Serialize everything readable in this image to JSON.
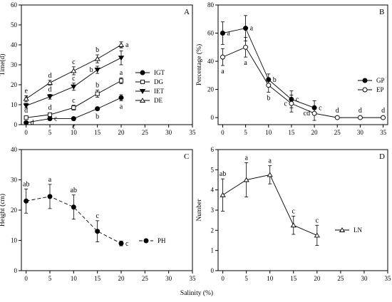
{
  "figure": {
    "shared_xlabel": "Salinity (%)"
  },
  "chart_data": [
    {
      "panel": "A",
      "type": "line",
      "ylabel": "Time(d)",
      "xlim": [
        -1,
        35
      ],
      "ylim": [
        0,
        60
      ],
      "xticks": [
        0,
        5,
        10,
        15,
        20,
        25,
        30,
        35
      ],
      "yticks": [
        0,
        10,
        20,
        30,
        40,
        50,
        60
      ],
      "legend_position": "bottom-right",
      "series": [
        {
          "name": "IGT",
          "marker": "filled-circle",
          "line": "solid",
          "x": [
            0,
            5,
            10,
            15,
            20
          ],
          "y": [
            1,
            3,
            3,
            8,
            13.5
          ],
          "err": [
            0.5,
            0.5,
            0.8,
            0.8,
            1.5
          ],
          "sig": [
            "d",
            "c",
            "c",
            "b",
            "a"
          ],
          "sig_side": [
            "right",
            "right",
            "below",
            "below",
            "below"
          ]
        },
        {
          "name": "DG",
          "marker": "open-square",
          "line": "solid",
          "x": [
            0,
            5,
            10,
            15,
            20
          ],
          "y": [
            3.5,
            5,
            8.5,
            15.5,
            22
          ],
          "err": [
            0.8,
            0.8,
            1.2,
            1.8,
            1.5
          ],
          "sig": [
            "d",
            "d",
            "c",
            "b",
            "a"
          ],
          "sig_side": [
            "above",
            "above",
            "above",
            "above",
            "above"
          ]
        },
        {
          "name": "IET",
          "marker": "filled-triangle-down",
          "line": "solid",
          "x": [
            0,
            5,
            10,
            15,
            20
          ],
          "y": [
            9.5,
            14,
            19,
            27.5,
            33.5
          ],
          "err": [
            1.2,
            1.2,
            1.8,
            1.8,
            3.5
          ],
          "sig": [
            "d",
            "d",
            "c",
            "b",
            "a"
          ],
          "sig_side": [
            "above",
            "above",
            "above",
            "left",
            "above"
          ]
        },
        {
          "name": "DE",
          "marker": "open-triangle-up",
          "line": "solid",
          "x": [
            0,
            5,
            10,
            15,
            20
          ],
          "y": [
            13,
            21,
            27,
            33,
            40
          ],
          "err": [
            1.5,
            1.2,
            2,
            2,
            1.5
          ],
          "sig": [
            "e",
            "d",
            "c",
            "b",
            "a"
          ],
          "sig_side": [
            "above",
            "above",
            "above",
            "above",
            "right"
          ]
        }
      ]
    },
    {
      "panel": "B",
      "type": "line",
      "ylabel": "Percentage (%)",
      "xlim": [
        -1,
        36
      ],
      "ylim": [
        -5,
        80
      ],
      "xticks": [
        0,
        5,
        10,
        15,
        20,
        25,
        30,
        35
      ],
      "yticks": [
        0,
        20,
        40,
        60,
        80
      ],
      "legend_position": "right",
      "series": [
        {
          "name": "GP",
          "marker": "filled-circle",
          "line": "solid",
          "x": [
            0,
            5,
            10,
            15,
            20
          ],
          "y": [
            60,
            63.5,
            27,
            13,
            7
          ],
          "err": [
            8,
            9,
            4,
            6,
            5
          ],
          "sig": [
            "a",
            "a",
            "b",
            "c",
            "c"
          ],
          "sig_side": [
            "right",
            "right",
            "right",
            "right",
            "right"
          ]
        },
        {
          "name": "EP",
          "marker": "open-circle",
          "line": "solid",
          "x": [
            0,
            5,
            10,
            15,
            20,
            25,
            30,
            35
          ],
          "y": [
            43,
            50,
            23,
            10,
            3,
            0,
            0,
            0
          ],
          "err": [
            6,
            7,
            5,
            6,
            5,
            0,
            0,
            0
          ],
          "sig": [
            "a",
            "a",
            "b",
            "c",
            "cd",
            "d",
            "d",
            "d"
          ],
          "sig_side": [
            "below",
            "below",
            "below",
            "left",
            "left",
            "above",
            "above",
            "above"
          ]
        }
      ]
    },
    {
      "panel": "C",
      "type": "line",
      "ylabel": "Height (cm)",
      "xlim": [
        -1,
        35
      ],
      "ylim": [
        0,
        40
      ],
      "xticks": [
        0,
        5,
        10,
        15,
        20,
        25,
        30,
        35
      ],
      "yticks": [
        0,
        10,
        20,
        30,
        40
      ],
      "legend_position": "right",
      "series": [
        {
          "name": "PH",
          "marker": "filled-circle",
          "line": "dashed",
          "x": [
            0,
            5,
            10,
            15,
            20
          ],
          "y": [
            23,
            24.5,
            21,
            13,
            9
          ],
          "err": [
            4,
            4,
            4,
            3.5,
            0.8
          ],
          "sig": [
            "ab",
            "a",
            "ab",
            "c",
            "c"
          ],
          "sig_side": [
            "above",
            "above",
            "above",
            "above",
            "right"
          ]
        }
      ]
    },
    {
      "panel": "D",
      "type": "line",
      "ylabel": "Number",
      "xlim": [
        -1,
        35
      ],
      "ylim": [
        0,
        6
      ],
      "xticks": [
        0,
        5,
        10,
        15,
        20,
        25,
        30,
        35
      ],
      "yticks": [
        0,
        1,
        2,
        3,
        4,
        5,
        6
      ],
      "legend_position": "right",
      "series": [
        {
          "name": "LN",
          "marker": "open-triangle-up",
          "line": "solid",
          "x": [
            0,
            5,
            10,
            15,
            20
          ],
          "y": [
            3.75,
            4.5,
            4.75,
            2.25,
            1.75
          ],
          "err": [
            0.8,
            0.85,
            0.45,
            0.45,
            0.5
          ],
          "sig": [
            "ab",
            "a",
            "a",
            "c",
            "c"
          ],
          "sig_side": [
            "above",
            "above",
            "above",
            "above",
            "above"
          ]
        }
      ]
    }
  ]
}
